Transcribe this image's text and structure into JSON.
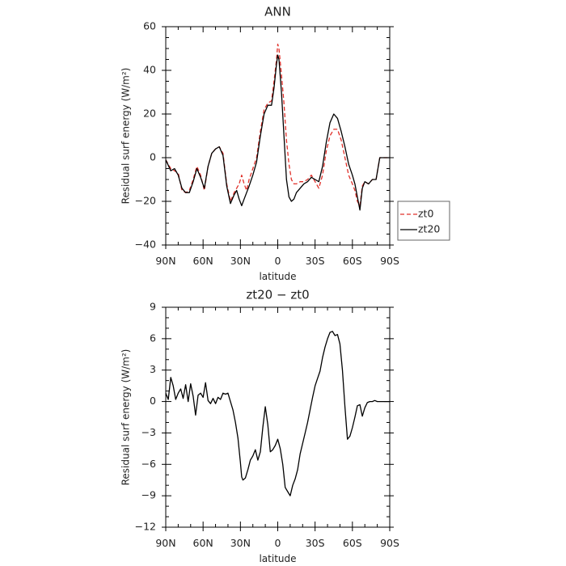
{
  "chart_data": [
    {
      "type": "line",
      "title": "ANN",
      "xlabel": "latitude",
      "ylabel": "Residual surf energy (W/m²)",
      "xlim": [
        90,
        -90
      ],
      "ylim": [
        -40,
        60
      ],
      "xticks": [
        90,
        60,
        30,
        0,
        -30,
        -60,
        -90
      ],
      "xtick_labels": [
        "90N",
        "60N",
        "30N",
        "0",
        "30S",
        "60S",
        "90S"
      ],
      "yticks": [
        -40,
        -20,
        0,
        20,
        40,
        60
      ],
      "ytick_labels": [
        "−40",
        "−20",
        "0",
        "20",
        "40",
        "60"
      ],
      "legend": {
        "position": "right",
        "entries": [
          "zt0",
          "zt20"
        ]
      },
      "series": [
        {
          "name": "zt0",
          "color": "#e0302a",
          "dash": "dashed",
          "x": [
            90,
            86,
            83,
            80,
            77,
            74,
            71,
            68,
            65,
            62,
            59,
            56,
            53,
            50,
            47,
            44,
            41,
            38,
            35,
            33,
            31,
            29,
            27,
            25,
            23,
            20,
            17,
            14,
            11,
            8,
            5,
            3,
            1,
            0,
            -1,
            -3,
            -5,
            -7,
            -9,
            -11,
            -13,
            -15,
            -18,
            -21,
            -24,
            -27,
            -30,
            -33,
            -36,
            -39,
            -42,
            -45,
            -48,
            -51,
            -54,
            -57,
            -60,
            -62,
            -64,
            -66,
            -68,
            -70,
            -73,
            -76,
            -79,
            -82,
            -84,
            -86,
            -88,
            -90
          ],
          "y": [
            -1,
            -5,
            -6,
            -7,
            -15,
            -16,
            -15,
            -10,
            -4,
            -8,
            -15,
            -4,
            2,
            4,
            5,
            2,
            -12,
            -20,
            -16,
            -14,
            -12,
            -8,
            -12,
            -15,
            -10,
            -5,
            0,
            12,
            22,
            25,
            26,
            35,
            45,
            52,
            50,
            38,
            25,
            8,
            -3,
            -10,
            -12,
            -12,
            -11,
            -11,
            -10,
            -8,
            -11,
            -14,
            -8,
            3,
            10,
            13,
            13,
            8,
            0,
            -8,
            -12,
            -15,
            -20,
            -22,
            -13,
            -11,
            -12,
            -10,
            -10,
            0,
            0,
            0,
            0,
            0
          ]
        },
        {
          "name": "zt20",
          "color": "#000000",
          "dash": "solid",
          "x": [
            90,
            86,
            83,
            80,
            77,
            74,
            71,
            68,
            65,
            62,
            59,
            56,
            53,
            50,
            47,
            44,
            41,
            38,
            35,
            33,
            31,
            29,
            27,
            25,
            23,
            20,
            17,
            14,
            11,
            8,
            5,
            3,
            1,
            0,
            -1,
            -3,
            -5,
            -7,
            -9,
            -11,
            -13,
            -15,
            -18,
            -21,
            -24,
            -27,
            -30,
            -33,
            -36,
            -39,
            -42,
            -45,
            -48,
            -51,
            -54,
            -57,
            -60,
            -62,
            -64,
            -66,
            -68,
            -70,
            -73,
            -76,
            -79,
            -82,
            -84,
            -86,
            -88,
            -90
          ],
          "y": [
            -1,
            -6,
            -5,
            -8,
            -14,
            -16,
            -16,
            -11,
            -5,
            -9,
            -14,
            -4,
            2,
            4,
            5,
            1,
            -13,
            -21,
            -17,
            -15,
            -19,
            -22,
            -19,
            -16,
            -13,
            -8,
            -2,
            10,
            20,
            24,
            24,
            32,
            43,
            47,
            45,
            30,
            10,
            -10,
            -18,
            -20,
            -19,
            -16,
            -14,
            -12,
            -11,
            -9,
            -10,
            -11,
            -4,
            7,
            16,
            20,
            18,
            12,
            5,
            -3,
            -8,
            -12,
            -18,
            -24,
            -14,
            -11,
            -12,
            -10,
            -10,
            0,
            0,
            0,
            0,
            0
          ]
        }
      ]
    },
    {
      "type": "line",
      "title": "zt20 − zt0",
      "xlabel": "latitude",
      "ylabel": "Residual surf energy (W/m²)",
      "xlim": [
        90,
        -90
      ],
      "ylim": [
        -12,
        9
      ],
      "xticks": [
        90,
        60,
        30,
        0,
        -30,
        -60,
        -90
      ],
      "xtick_labels": [
        "90N",
        "60N",
        "30N",
        "0",
        "30S",
        "60S",
        "90S"
      ],
      "yticks": [
        -12,
        -9,
        -6,
        -3,
        0,
        3,
        6,
        9
      ],
      "ytick_labels": [
        "−12",
        "−9",
        "−6",
        "−3",
        "0",
        "3",
        "6",
        "9"
      ],
      "series": [
        {
          "color": "#000000",
          "dash": "solid",
          "x": [
            90,
            88,
            86,
            84,
            82,
            80,
            78,
            76,
            74,
            72,
            70,
            68,
            66,
            64,
            62,
            60,
            58,
            56,
            54,
            52,
            50,
            48,
            46,
            44,
            42,
            40,
            38,
            36,
            34,
            32,
            30,
            29,
            28,
            26,
            24,
            22,
            20,
            18,
            16,
            14,
            12,
            10,
            8,
            6,
            4,
            2,
            0,
            -2,
            -4,
            -6,
            -8,
            -10,
            -12,
            -14,
            -16,
            -18,
            -20,
            -22,
            -24,
            -26,
            -28,
            -30,
            -32,
            -34,
            -36,
            -38,
            -40,
            -42,
            -44,
            -46,
            -48,
            -50,
            -52,
            -54,
            -56,
            -58,
            -60,
            -62,
            -64,
            -66,
            -68,
            -70,
            -72,
            -74,
            -76,
            -78,
            -80,
            -82,
            -84,
            -86,
            -88,
            -90
          ],
          "y": [
            0.8,
            0.2,
            2.3,
            1.5,
            0.2,
            0.8,
            1.2,
            0.3,
            1.6,
            0.0,
            1.7,
            0.5,
            -1.3,
            0.6,
            0.8,
            0.4,
            1.8,
            0.1,
            -0.2,
            0.3,
            -0.2,
            0.4,
            0.2,
            0.8,
            0.7,
            0.8,
            0.0,
            -0.8,
            -2.0,
            -3.5,
            -5.8,
            -7.2,
            -7.5,
            -7.3,
            -6.5,
            -5.6,
            -5.2,
            -4.6,
            -5.6,
            -4.8,
            -2.5,
            -0.5,
            -2.2,
            -4.8,
            -4.6,
            -4.2,
            -3.6,
            -4.5,
            -6.0,
            -8.2,
            -8.6,
            -9.0,
            -8.0,
            -7.4,
            -6.5,
            -5.0,
            -4.0,
            -3.0,
            -2.0,
            -0.8,
            0.4,
            1.5,
            2.2,
            2.9,
            4.2,
            5.2,
            6.0,
            6.6,
            6.7,
            6.3,
            6.4,
            5.5,
            3.0,
            -0.5,
            -3.6,
            -3.3,
            -2.5,
            -1.5,
            -0.4,
            -0.3,
            -1.4,
            -0.6,
            -0.1,
            0.0,
            0.0,
            0.1,
            0.0,
            0.0,
            0.0,
            0.0,
            0.0,
            0.0
          ]
        }
      ]
    }
  ]
}
